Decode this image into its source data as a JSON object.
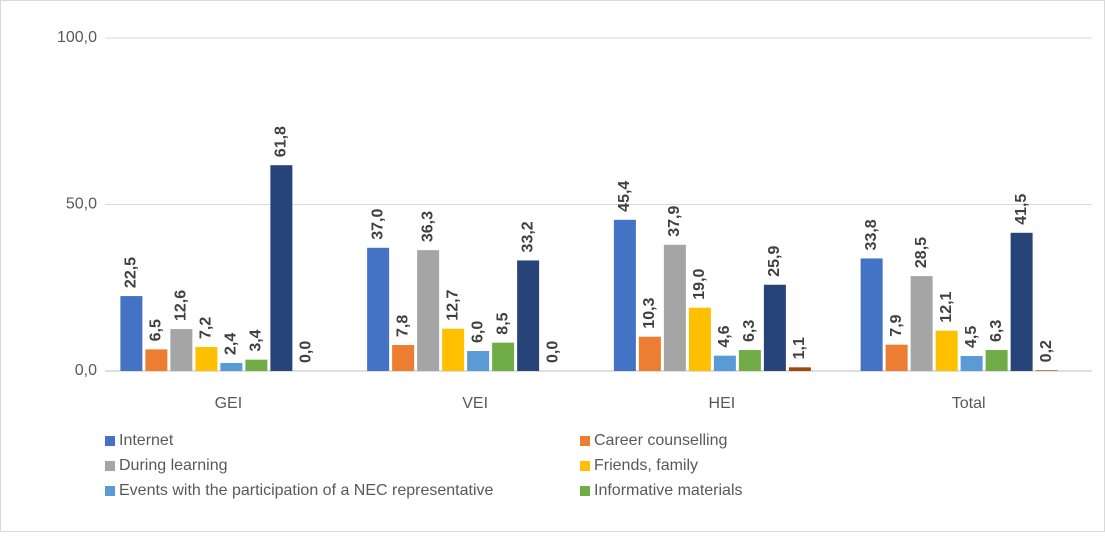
{
  "chart_data": {
    "type": "bar",
    "categories": [
      "GEI",
      "VEI",
      "HEI",
      "Total"
    ],
    "series": [
      {
        "name": "Internet",
        "color": "#4472c4",
        "values": [
          22.5,
          37.0,
          45.4,
          33.8
        ],
        "value_labels": [
          "22,5",
          "37,0",
          "45,4",
          "33,8"
        ]
      },
      {
        "name": "Career counselling",
        "color": "#ed7d31",
        "values": [
          6.5,
          7.8,
          10.3,
          7.9
        ],
        "value_labels": [
          "6,5",
          "7,8",
          "10,3",
          "7,9"
        ]
      },
      {
        "name": "During learning",
        "color": "#a5a5a5",
        "values": [
          12.6,
          36.3,
          37.9,
          28.5
        ],
        "value_labels": [
          "12,6",
          "36,3",
          "37,9",
          "28,5"
        ]
      },
      {
        "name": "Friends, family",
        "color": "#ffc000",
        "values": [
          7.2,
          12.7,
          19.0,
          12.1
        ],
        "value_labels": [
          "7,2",
          "12,7",
          "19,0",
          "12,1"
        ]
      },
      {
        "name": "Events with the participation of a NEC representative",
        "color": "#5b9bd5",
        "values": [
          2.4,
          6.0,
          4.6,
          4.5
        ],
        "value_labels": [
          "2,4",
          "6,0",
          "4,6",
          "4,5"
        ]
      },
      {
        "name": "Informative materials",
        "color": "#70ad47",
        "values": [
          3.4,
          8.5,
          6.3,
          6.3
        ],
        "value_labels": [
          "3,4",
          "8,5",
          "6,3",
          "6,3"
        ]
      },
      {
        "color": "#264478",
        "values": [
          61.8,
          33.2,
          25.9,
          41.5
        ],
        "value_labels": [
          "61,8",
          "33,2",
          "25,9",
          "41,5"
        ]
      },
      {
        "color": "#9e480e",
        "values": [
          0.0,
          0.0,
          1.1,
          0.2
        ],
        "value_labels": [
          "0,0",
          "0,0",
          "1,1",
          "0,2"
        ]
      }
    ],
    "ylim": [
      0,
      100
    ],
    "yticks": [
      {
        "value": 0,
        "label": "0,0"
      },
      {
        "value": 50,
        "label": "50,0"
      },
      {
        "value": 100,
        "label": "100,0"
      }
    ],
    "grid": true,
    "legend": "bottom"
  }
}
